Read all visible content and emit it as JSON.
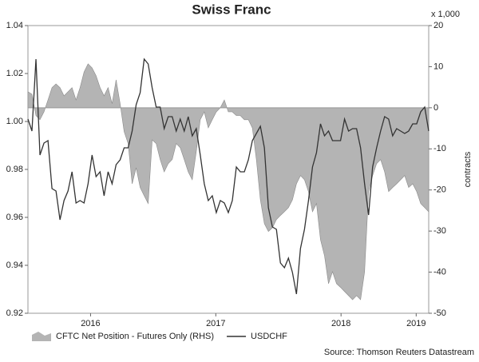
{
  "chart_data": {
    "type": "area-line",
    "title": "Swiss Franc",
    "y2_unit": "x 1,000",
    "y2label": "contracts",
    "source": "Source: Thomson Reuters Datastream",
    "x": [
      2016,
      2016.032,
      2016.064,
      2016.096,
      2016.128,
      2016.16,
      2016.192,
      2016.224,
      2016.256,
      2016.288,
      2016.32,
      2016.352,
      2016.384,
      2016.416,
      2016.448,
      2016.48,
      2016.512,
      2016.544,
      2016.576,
      2016.608,
      2016.64,
      2016.672,
      2016.704,
      2016.736,
      2016.768,
      2016.8,
      2016.832,
      2016.864,
      2016.896,
      2016.928,
      2016.96,
      2016.992,
      2017.024,
      2017.056,
      2017.088,
      2017.12,
      2017.152,
      2017.184,
      2017.216,
      2017.248,
      2017.28,
      2017.312,
      2017.344,
      2017.376,
      2017.408,
      2017.44,
      2017.472,
      2017.504,
      2017.536,
      2017.568,
      2017.6,
      2017.632,
      2017.664,
      2017.696,
      2017.728,
      2017.76,
      2017.792,
      2017.824,
      2017.856,
      2017.888,
      2017.92,
      2017.952,
      2017.984,
      2018.016,
      2018.048,
      2018.08,
      2018.112,
      2018.144,
      2018.176,
      2018.208,
      2018.24,
      2018.272,
      2018.304,
      2018.336,
      2018.368,
      2018.4,
      2018.432,
      2018.464,
      2018.496,
      2018.528,
      2018.56,
      2018.592,
      2018.624,
      2018.656,
      2018.688,
      2018.72,
      2018.752,
      2018.784,
      2018.816,
      2018.848,
      2018.88,
      2018.912,
      2018.944,
      2018.976,
      2019.008,
      2019.04,
      2019.072,
      2019.104,
      2019.136,
      2019.168,
      2019.2
    ],
    "series": [
      {
        "name": "CFTC Net Position - Futures Only (RHS)",
        "color": "#b4b4b4",
        "axis": "y2",
        "kind": "area",
        "values": [
          3.9,
          3.3,
          -1.9,
          -2.9,
          -1,
          1.9,
          4.9,
          5.8,
          4.9,
          2.9,
          3.9,
          4.9,
          1.9,
          4.9,
          8.7,
          10.7,
          9.7,
          7.8,
          4.9,
          2.9,
          4.9,
          1,
          6.8,
          1,
          -5.8,
          -8.7,
          -18.5,
          -14.6,
          -19.4,
          -21.4,
          -23.3,
          -7.8,
          -8.7,
          -12.6,
          -15.6,
          -13.6,
          -12.6,
          -8.7,
          -9.7,
          -12.6,
          -15.6,
          -17.5,
          -10.7,
          -2.9,
          -1,
          -4.9,
          -2.9,
          -1,
          0,
          1.9,
          -1,
          -1,
          -1.9,
          -1.9,
          -2.9,
          -2.9,
          -4.9,
          -12.6,
          -22.4,
          -28.2,
          -30.1,
          -29.2,
          -27.2,
          -26.2,
          -25.3,
          -24.3,
          -22.4,
          -18.5,
          -16.5,
          -17.5,
          -20.4,
          -25.3,
          -23.3,
          -32.1,
          -36,
          -42.8,
          -39.9,
          -42.8,
          -43.7,
          -44.7,
          -45.7,
          -46.7,
          -45.7,
          -46.7,
          -39.9,
          -20.4,
          -16.5,
          -13.6,
          -12.6,
          -15.6,
          -20.4,
          -19.4,
          -18.5,
          -17.5,
          -16.5,
          -19.4,
          -18.5,
          -20.4,
          -23.3,
          -24.3,
          -25.3
        ]
      },
      {
        "name": "USDCHF",
        "color": "#333333",
        "kind": "line",
        "values": [
          1.001,
          0.996,
          1.026,
          0.986,
          0.991,
          0.992,
          0.972,
          0.971,
          0.959,
          0.967,
          0.971,
          0.979,
          0.966,
          0.967,
          0.966,
          0.974,
          0.986,
          0.977,
          0.979,
          0.969,
          0.979,
          0.974,
          0.982,
          0.984,
          0.989,
          0.989,
          0.996,
          1.007,
          1.012,
          1.026,
          1.024,
          1.014,
          1.006,
          1.006,
          0.997,
          1.002,
          1.002,
          0.996,
          1.001,
          0.996,
          1.002,
          0.994,
          0.997,
          0.986,
          0.974,
          0.967,
          0.969,
          0.962,
          0.967,
          0.966,
          0.962,
          0.967,
          0.981,
          0.979,
          0.979,
          0.984,
          0.992,
          0.995,
          0.998,
          0.989,
          0.964,
          0.956,
          0.955,
          0.941,
          0.939,
          0.943,
          0.937,
          0.928,
          0.947,
          0.955,
          0.967,
          0.981,
          0.987,
          0.999,
          0.994,
          0.996,
          0.992,
          0.992,
          0.992,
          1.001,
          0.996,
          0.997,
          0.997,
          0.989,
          0.974,
          0.961,
          0.981,
          0.989,
          0.996,
          1.002,
          1.001,
          0.994,
          0.997,
          0.996,
          0.995,
          0.996,
          0.999,
          0.999,
          1.004,
          1.006,
          0.996
        ]
      }
    ],
    "xlim": [
      2016,
      2019.2
    ],
    "xticks": [
      {
        "value": 2016.5,
        "label": "2016"
      },
      {
        "value": 2017.5,
        "label": "2017"
      },
      {
        "value": 2018.5,
        "label": "2018"
      },
      {
        "value": 2019.1,
        "label": "2019"
      }
    ],
    "ylim": [
      0.92,
      1.04
    ],
    "yticks": [
      0.92,
      0.94,
      0.96,
      0.98,
      {
        "value": 1,
        "label": "1.00"
      },
      1.02,
      1.04
    ],
    "y2lim": [
      -50,
      20
    ],
    "y2ticks": [
      -50,
      -40,
      -30,
      -20,
      -10,
      0,
      10,
      20
    ]
  }
}
